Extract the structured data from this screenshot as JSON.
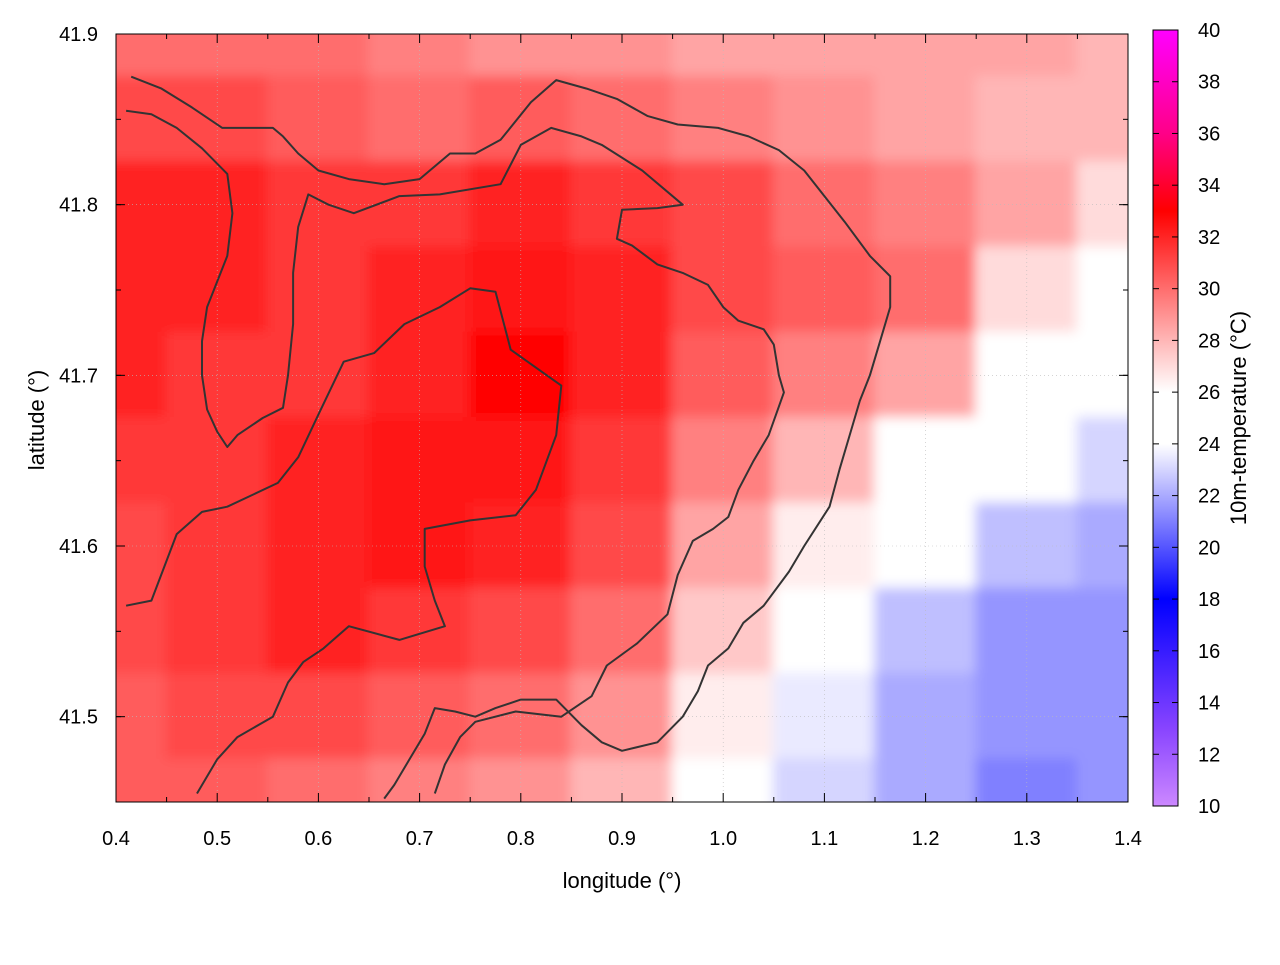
{
  "chart_data": {
    "type": "heatmap",
    "xlabel": "longitude (°)",
    "ylabel": "latitude (°)",
    "colorbar_label": "10m-temperature (°C)",
    "xlim": [
      0.4,
      1.4
    ],
    "ylim": [
      41.45,
      41.9
    ],
    "x_ticks": [
      0.4,
      0.5,
      0.6,
      0.7,
      0.8,
      0.9,
      1.0,
      1.1,
      1.2,
      1.3,
      1.4
    ],
    "x_tick_labels": [
      "0.4",
      "0.5",
      "0.6",
      "0.7",
      "0.8",
      "0.9",
      "1.0",
      "1.1",
      "1.2",
      "1.3",
      "1.4"
    ],
    "y_ticks": [
      41.5,
      41.6,
      41.7,
      41.8,
      41.9
    ],
    "y_tick_labels": [
      "41.5",
      "41.6",
      "41.7",
      "41.8",
      "41.9"
    ],
    "colorbar_range": [
      10,
      40
    ],
    "colorbar_ticks": [
      10,
      12,
      14,
      16,
      18,
      20,
      22,
      24,
      26,
      28,
      30,
      32,
      34,
      36,
      38,
      40
    ],
    "colorbar_tick_labels": [
      "10",
      "12",
      "14",
      "16",
      "18",
      "20",
      "22",
      "24",
      "26",
      "28",
      "30",
      "32",
      "34",
      "36",
      "38",
      "40"
    ],
    "grid": true,
    "colormap": [
      {
        "value": 10,
        "color": "#cc88ff"
      },
      {
        "value": 13,
        "color": "#8844ff"
      },
      {
        "value": 18,
        "color": "#0000ff"
      },
      {
        "value": 24,
        "color": "#ffffff"
      },
      {
        "value": 26,
        "color": "#ffffff"
      },
      {
        "value": 33,
        "color": "#ff0000"
      },
      {
        "value": 36,
        "color": "#ff0088"
      },
      {
        "value": 40,
        "color": "#ff00ff"
      }
    ],
    "temperature_field": {
      "x": [
        0.4,
        0.5,
        0.6,
        0.7,
        0.8,
        0.9,
        1.0,
        1.1,
        1.2,
        1.3,
        1.4
      ],
      "y": [
        41.9,
        41.85,
        41.8,
        41.75,
        41.7,
        41.65,
        41.6,
        41.55,
        41.5,
        41.45
      ],
      "values": [
        [
          30.0,
          30.0,
          30.0,
          29.5,
          29.0,
          29.0,
          28.5,
          28.5,
          28.5,
          28.5,
          28.0
        ],
        [
          31.0,
          31.0,
          30.5,
          30.0,
          30.5,
          30.0,
          29.5,
          29.0,
          28.5,
          28.0,
          28.0
        ],
        [
          32.0,
          32.0,
          31.5,
          31.5,
          32.0,
          31.5,
          31.0,
          30.0,
          29.5,
          28.5,
          27.0
        ],
        [
          32.0,
          32.0,
          31.5,
          32.0,
          32.5,
          32.0,
          31.0,
          30.5,
          30.0,
          27.0,
          25.5
        ],
        [
          32.0,
          31.5,
          31.5,
          32.0,
          33.0,
          32.0,
          30.5,
          29.5,
          28.5,
          26.0,
          24.5
        ],
        [
          31.5,
          31.5,
          32.0,
          32.5,
          32.5,
          31.5,
          29.5,
          28.0,
          26.0,
          24.0,
          23.0
        ],
        [
          31.0,
          31.5,
          32.0,
          32.5,
          32.0,
          31.0,
          28.5,
          26.5,
          24.0,
          22.5,
          22.0
        ],
        [
          31.0,
          31.5,
          32.0,
          31.5,
          31.0,
          30.0,
          27.5,
          24.5,
          22.5,
          21.5,
          21.5
        ],
        [
          30.5,
          31.0,
          31.0,
          30.5,
          30.0,
          29.0,
          26.5,
          23.5,
          22.0,
          21.5,
          21.5
        ],
        [
          30.5,
          30.5,
          30.0,
          29.5,
          29.0,
          28.0,
          26.0,
          23.0,
          22.0,
          21.0,
          21.5
        ]
      ]
    },
    "contours": [
      [
        [
          0.41,
          41.565
        ],
        [
          0.435,
          41.568
        ],
        [
          0.46,
          41.607
        ],
        [
          0.485,
          41.62
        ],
        [
          0.51,
          41.623
        ],
        [
          0.56,
          41.637
        ],
        [
          0.58,
          41.652
        ],
        [
          0.6,
          41.677
        ],
        [
          0.625,
          41.708
        ],
        [
          0.655,
          41.713
        ],
        [
          0.685,
          41.73
        ],
        [
          0.72,
          41.74
        ],
        [
          0.75,
          41.751
        ],
        [
          0.775,
          41.749
        ],
        [
          0.79,
          41.715
        ],
        [
          0.84,
          41.694
        ],
        [
          0.835,
          41.665
        ],
        [
          0.815,
          41.633
        ],
        [
          0.795,
          41.618
        ],
        [
          0.75,
          41.615
        ],
        [
          0.705,
          41.61
        ],
        [
          0.705,
          41.588
        ],
        [
          0.715,
          41.568
        ],
        [
          0.725,
          41.553
        ],
        [
          0.68,
          41.545
        ],
        [
          0.63,
          41.553
        ],
        [
          0.605,
          41.54
        ],
        [
          0.585,
          41.532
        ],
        [
          0.57,
          41.52
        ],
        [
          0.555,
          41.5
        ],
        [
          0.52,
          41.488
        ],
        [
          0.5,
          41.475
        ],
        [
          0.49,
          41.465
        ],
        [
          0.48,
          41.455
        ]
      ],
      [
        [
          0.415,
          41.875
        ],
        [
          0.445,
          41.868
        ],
        [
          0.475,
          41.857
        ],
        [
          0.505,
          41.845
        ],
        [
          0.535,
          41.845
        ],
        [
          0.555,
          41.845
        ],
        [
          0.565,
          41.84
        ],
        [
          0.58,
          41.83
        ],
        [
          0.6,
          41.82
        ],
        [
          0.63,
          41.815
        ],
        [
          0.665,
          41.812
        ],
        [
          0.7,
          41.815
        ],
        [
          0.73,
          41.83
        ],
        [
          0.755,
          41.83
        ],
        [
          0.78,
          41.838
        ],
        [
          0.81,
          41.86
        ],
        [
          0.835,
          41.873
        ],
        [
          0.865,
          41.868
        ],
        [
          0.895,
          41.862
        ],
        [
          0.925,
          41.852
        ],
        [
          0.955,
          41.847
        ],
        [
          0.995,
          41.845
        ],
        [
          1.025,
          41.84
        ],
        [
          1.055,
          41.832
        ],
        [
          1.08,
          41.82
        ],
        [
          1.1,
          41.805
        ],
        [
          1.12,
          41.79
        ],
        [
          1.145,
          41.77
        ],
        [
          1.165,
          41.758
        ],
        [
          1.165,
          41.74
        ],
        [
          1.155,
          41.72
        ],
        [
          1.145,
          41.7
        ],
        [
          1.135,
          41.685
        ],
        [
          1.125,
          41.665
        ],
        [
          1.115,
          41.645
        ],
        [
          1.105,
          41.623
        ],
        [
          1.08,
          41.6
        ],
        [
          1.065,
          41.585
        ],
        [
          1.04,
          41.565
        ],
        [
          1.02,
          41.555
        ],
        [
          1.005,
          41.54
        ],
        [
          0.985,
          41.53
        ],
        [
          0.975,
          41.515
        ],
        [
          0.96,
          41.5
        ],
        [
          0.935,
          41.485
        ],
        [
          0.9,
          41.48
        ],
        [
          0.88,
          41.485
        ],
        [
          0.86,
          41.495
        ],
        [
          0.835,
          41.51
        ],
        [
          0.8,
          41.51
        ],
        [
          0.775,
          41.505
        ],
        [
          0.755,
          41.5
        ],
        [
          0.735,
          41.503
        ],
        [
          0.715,
          41.505
        ],
        [
          0.705,
          41.49
        ],
        [
          0.69,
          41.475
        ],
        [
          0.675,
          41.46
        ],
        [
          0.665,
          41.452
        ]
      ],
      [
        [
          0.41,
          41.855
        ],
        [
          0.435,
          41.853
        ],
        [
          0.46,
          41.845
        ],
        [
          0.485,
          41.833
        ],
        [
          0.51,
          41.818
        ],
        [
          0.515,
          41.795
        ],
        [
          0.51,
          41.77
        ],
        [
          0.5,
          41.755
        ],
        [
          0.49,
          41.74
        ],
        [
          0.485,
          41.72
        ],
        [
          0.485,
          41.7
        ],
        [
          0.49,
          41.68
        ],
        [
          0.5,
          41.667
        ],
        [
          0.51,
          41.658
        ],
        [
          0.52,
          41.665
        ],
        [
          0.545,
          41.675
        ],
        [
          0.565,
          41.681
        ],
        [
          0.57,
          41.7
        ],
        [
          0.575,
          41.73
        ],
        [
          0.575,
          41.76
        ],
        [
          0.58,
          41.787
        ],
        [
          0.59,
          41.806
        ],
        [
          0.61,
          41.8
        ],
        [
          0.635,
          41.795
        ],
        [
          0.68,
          41.805
        ],
        [
          0.72,
          41.806
        ],
        [
          0.78,
          41.812
        ],
        [
          0.8,
          41.835
        ],
        [
          0.83,
          41.845
        ],
        [
          0.86,
          41.84
        ],
        [
          0.88,
          41.835
        ],
        [
          0.92,
          41.82
        ],
        [
          0.96,
          41.8
        ],
        [
          0.935,
          41.798
        ],
        [
          0.9,
          41.797
        ],
        [
          0.895,
          41.78
        ],
        [
          0.91,
          41.776
        ],
        [
          0.935,
          41.765
        ],
        [
          0.96,
          41.76
        ],
        [
          0.985,
          41.753
        ],
        [
          1.0,
          41.74
        ],
        [
          1.015,
          41.732
        ],
        [
          1.04,
          41.727
        ],
        [
          1.05,
          41.718
        ],
        [
          1.055,
          41.7
        ],
        [
          1.06,
          41.69
        ],
        [
          1.045,
          41.665
        ],
        [
          1.03,
          41.65
        ],
        [
          1.015,
          41.633
        ],
        [
          1.005,
          41.617
        ],
        [
          0.99,
          41.61
        ],
        [
          0.97,
          41.603
        ],
        [
          0.955,
          41.583
        ],
        [
          0.945,
          41.56
        ],
        [
          0.915,
          41.543
        ],
        [
          0.885,
          41.53
        ],
        [
          0.87,
          41.512
        ],
        [
          0.84,
          41.5
        ],
        [
          0.795,
          41.503
        ],
        [
          0.755,
          41.497
        ],
        [
          0.74,
          41.488
        ],
        [
          0.725,
          41.472
        ],
        [
          0.715,
          41.455
        ]
      ]
    ]
  }
}
